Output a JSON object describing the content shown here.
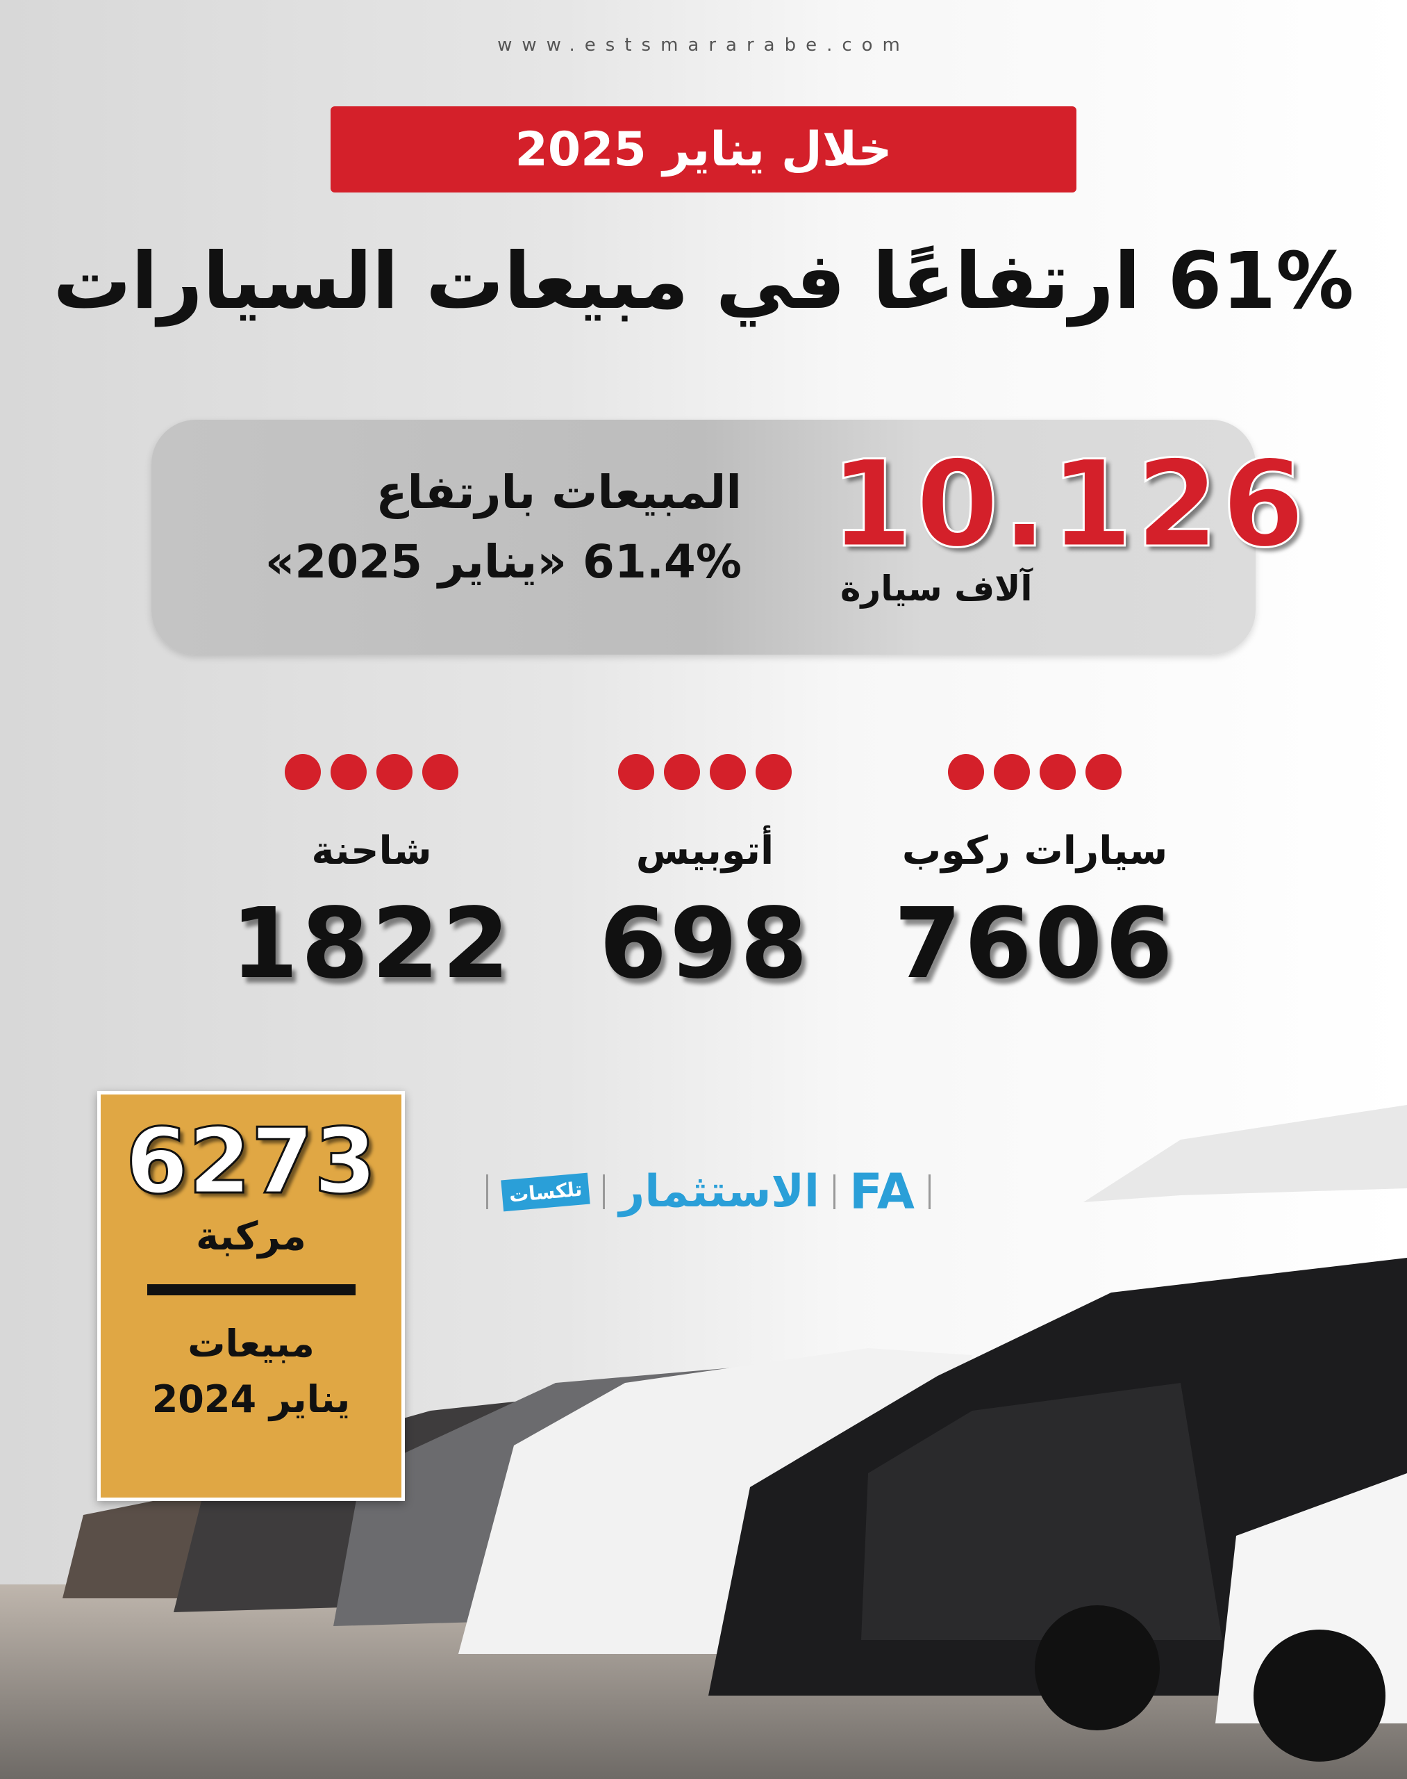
{
  "site_url": "www.estsmararabe.com",
  "banner": "خلال يناير 2025",
  "title": "61% ارتفاعًا في مبيعات السيارات",
  "total": {
    "value": "10.126",
    "unit": "آلاف سيارة",
    "line1": "المبيعات بارتفاع",
    "line2": "61.4% «يناير 2025»"
  },
  "categories": [
    {
      "label": "سيارات ركوب",
      "value": "7606"
    },
    {
      "label": "أتوبيس",
      "value": "698"
    },
    {
      "label": "شاحنة",
      "value": "1822"
    }
  ],
  "previous": {
    "value": "6273",
    "unit": "مركبة",
    "label1": "مبيعات",
    "label2": "يناير 2024"
  },
  "logos": [
    "FA",
    "الاستثمار",
    "تلكسات"
  ],
  "colors": {
    "accent": "#d4202a",
    "gold": "#e0a744"
  }
}
